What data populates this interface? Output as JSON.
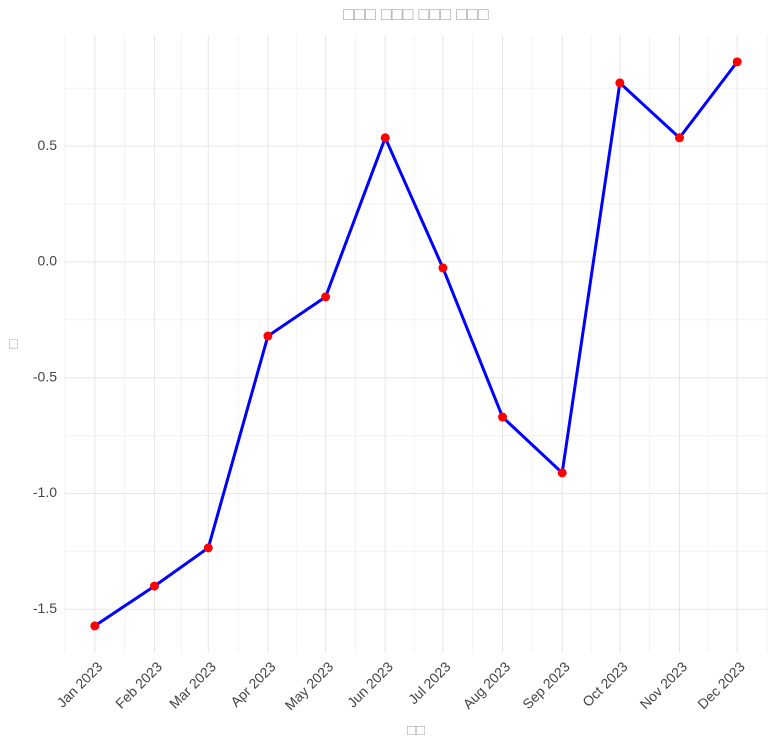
{
  "chart_data": {
    "type": "line",
    "title": "□□□ □□□ □□□ □□□",
    "x_label": "□□",
    "y_label": "□",
    "categories": [
      "Jan 2023",
      "Feb 2023",
      "Mar 2023",
      "Apr 2023",
      "May 2023",
      "Jun 2023",
      "Jul 2023",
      "Aug 2023",
      "Sep 2023",
      "Oct 2023",
      "Nov 2023",
      "Dec 2023"
    ],
    "series": [
      {
        "color": "#0000ff",
        "marker_color": "#ff0000",
        "values": [
          -1.572,
          -1.4,
          -1.235,
          -0.32,
          -0.151,
          0.536,
          -0.026,
          -0.67,
          -0.911,
          0.773,
          0.536,
          0.864
        ]
      }
    ],
    "ylim": [
      -1.689,
      0.98
    ],
    "yticks": [
      -1.5,
      {
        "value": -1,
        "label": "-1.0"
      },
      -0.5,
      {
        "value": 0,
        "label": "0.0"
      },
      0.5
    ],
    "grid": true
  }
}
